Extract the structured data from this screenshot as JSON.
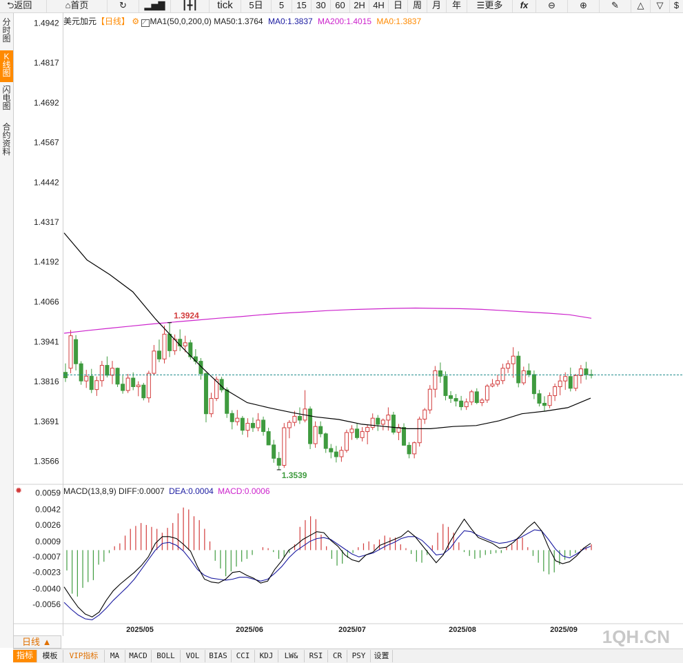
{
  "toolbar": {
    "back": "返回",
    "home": "首页",
    "tick": "tick",
    "p5d": "5日",
    "p5": "5",
    "p15": "15",
    "p30": "30",
    "p60": "60",
    "p2h": "2H",
    "p4h": "4H",
    "day": "日",
    "week": "周",
    "month": "月",
    "year": "年",
    "more": "更多",
    "fx": "fx"
  },
  "sidebar": {
    "tabs": [
      "分时图",
      "K线图",
      "闪电图",
      "合约资料"
    ],
    "active": 1
  },
  "legend": {
    "symbol": "美元加元",
    "period_tag": "【日线】",
    "ma_name": "MA1(50,0,200,0)",
    "ma50": "MA50:1.3764",
    "ma0_a": "MA0:1.3837",
    "ma200": "MA200:1.4015",
    "ma0_b": "MA0:1.3837"
  },
  "price_axis": [
    "1.4942",
    "1.4817",
    "1.4692",
    "1.4567",
    "1.4442",
    "1.4317",
    "1.4192",
    "1.4066",
    "1.3941",
    "1.3816",
    "1.3691",
    "1.3566"
  ],
  "annotations": {
    "high": "1.3924",
    "low": "1.3539"
  },
  "macd_legend": {
    "name": "MACD(13,8,9)",
    "diff": "DIFF:0.0007",
    "dea": "DEA:0.0004",
    "macd": "MACD:0.0006"
  },
  "macd_axis": [
    "0.0059",
    "0.0042",
    "0.0026",
    "0.0009",
    "-0.0007",
    "-0.0023",
    "-0.0040",
    "-0.0056"
  ],
  "x_labels": [
    "2025/05",
    "2025/06",
    "2025/07",
    "2025/08",
    "2025/09"
  ],
  "watermark": "1QH.CN",
  "period_selector": "日线 ▲",
  "bottom_tabs": [
    "指标",
    "模板",
    "VIP指标",
    "MA",
    "MACD",
    "BOLL",
    "VOL",
    "BIAS",
    "CCI",
    "KDJ",
    "LW&",
    "RSI",
    "CR",
    "PSY",
    "设置"
  ],
  "colors": {
    "up": "#d23b3b",
    "down": "#3f9b3f",
    "ma50": "#000000",
    "ma200": "#cc22cc",
    "ma0": "#ff8a00",
    "dea": "#1a1aa0",
    "last_price": "#1a8a8a"
  },
  "chart_data": {
    "type": "candlestick",
    "ylim": [
      1.3541,
      1.4967
    ],
    "last_price": 1.3837,
    "ma200": [
      1.3968,
      1.3976,
      1.3983,
      1.399,
      1.3997,
      1.4003,
      1.4009,
      1.4015,
      1.402,
      1.4026,
      1.4031,
      1.4035,
      1.4039,
      1.4042,
      1.4044,
      1.4046,
      1.4047,
      1.4046,
      1.4045,
      1.4043,
      1.4039,
      1.4035,
      1.4031,
      1.4026,
      1.4015
    ],
    "ma50": [
      1.4283,
      1.4198,
      1.4152,
      1.4098,
      1.4012,
      1.3935,
      1.3862,
      1.3793,
      1.375,
      1.3733,
      1.3718,
      1.3705,
      1.3697,
      1.3682,
      1.3675,
      1.3668,
      1.3668,
      1.3675,
      1.3678,
      1.3693,
      1.3715,
      1.3723,
      1.3734,
      1.3764
    ],
    "candles": [
      [
        1.3845,
        1.3873,
        1.3815,
        1.3828
      ],
      [
        1.3858,
        1.3978,
        1.3842,
        1.396
      ],
      [
        1.3948,
        1.3962,
        1.3851,
        1.3872
      ],
      [
        1.3872,
        1.388,
        1.3806,
        1.3818
      ],
      [
        1.3818,
        1.3853,
        1.3796,
        1.3833
      ],
      [
        1.3833,
        1.3856,
        1.378,
        1.3791
      ],
      [
        1.3791,
        1.3832,
        1.3771,
        1.3819
      ],
      [
        1.3819,
        1.3881,
        1.38,
        1.3867
      ],
      [
        1.3867,
        1.3895,
        1.3829,
        1.3836
      ],
      [
        1.3836,
        1.3881,
        1.3808,
        1.3858
      ],
      [
        1.3858,
        1.386,
        1.3799,
        1.3808
      ],
      [
        1.3808,
        1.3835,
        1.3778,
        1.3788
      ],
      [
        1.3788,
        1.384,
        1.378,
        1.3827
      ],
      [
        1.3827,
        1.3845,
        1.3789,
        1.38
      ],
      [
        1.38,
        1.3817,
        1.377,
        1.3805
      ],
      [
        1.3805,
        1.3812,
        1.3757,
        1.3765
      ],
      [
        1.3765,
        1.385,
        1.375,
        1.3842
      ],
      [
        1.3842,
        1.3931,
        1.3836,
        1.3912
      ],
      [
        1.3912,
        1.3948,
        1.3877,
        1.3887
      ],
      [
        1.3887,
        1.3992,
        1.3873,
        1.3965
      ],
      [
        1.3965,
        1.4001,
        1.3893,
        1.3913
      ],
      [
        1.3913,
        1.3964,
        1.39,
        1.3949
      ],
      [
        1.3949,
        1.398,
        1.3912,
        1.3928
      ],
      [
        1.3928,
        1.396,
        1.3908,
        1.3938
      ],
      [
        1.3938,
        1.3947,
        1.3885,
        1.3894
      ],
      [
        1.3894,
        1.3918,
        1.387,
        1.388
      ],
      [
        1.388,
        1.389,
        1.3822,
        1.3841
      ],
      [
        1.3841,
        1.3845,
        1.3688,
        1.3715
      ],
      [
        1.3715,
        1.3781,
        1.3704,
        1.3763
      ],
      [
        1.3763,
        1.3832,
        1.3755,
        1.3823
      ],
      [
        1.3823,
        1.3831,
        1.3782,
        1.379
      ],
      [
        1.379,
        1.3798,
        1.3702,
        1.3716
      ],
      [
        1.3716,
        1.3726,
        1.3666,
        1.369
      ],
      [
        1.369,
        1.3727,
        1.3678,
        1.3701
      ],
      [
        1.3701,
        1.3708,
        1.3649,
        1.3663
      ],
      [
        1.3663,
        1.3701,
        1.3641,
        1.3685
      ],
      [
        1.3685,
        1.3703,
        1.3658,
        1.3671
      ],
      [
        1.3671,
        1.3717,
        1.366,
        1.3695
      ],
      [
        1.3695,
        1.3706,
        1.3646,
        1.3659
      ],
      [
        1.3659,
        1.3671,
        1.3616,
        1.3617
      ],
      [
        1.3617,
        1.3633,
        1.3561,
        1.3575
      ],
      [
        1.3575,
        1.3595,
        1.3539,
        1.3553
      ],
      [
        1.3553,
        1.3686,
        1.3545,
        1.3671
      ],
      [
        1.3671,
        1.3695,
        1.3638,
        1.3688
      ],
      [
        1.3688,
        1.3724,
        1.3676,
        1.3707
      ],
      [
        1.3707,
        1.3735,
        1.3683,
        1.3695
      ],
      [
        1.3695,
        1.3789,
        1.3688,
        1.373
      ],
      [
        1.373,
        1.3738,
        1.3604,
        1.3621
      ],
      [
        1.3621,
        1.3691,
        1.3608,
        1.3675
      ],
      [
        1.3675,
        1.3691,
        1.3641,
        1.3652
      ],
      [
        1.3652,
        1.3656,
        1.3592,
        1.3606
      ],
      [
        1.3606,
        1.362,
        1.3575,
        1.3595
      ],
      [
        1.3595,
        1.3614,
        1.3562,
        1.358
      ],
      [
        1.358,
        1.3612,
        1.3564,
        1.36
      ],
      [
        1.36,
        1.3665,
        1.3593,
        1.3656
      ],
      [
        1.3656,
        1.3679,
        1.3633,
        1.3667
      ],
      [
        1.3667,
        1.3685,
        1.3634,
        1.364
      ],
      [
        1.364,
        1.3673,
        1.3628,
        1.3659
      ],
      [
        1.3659,
        1.368,
        1.3619,
        1.3672
      ],
      [
        1.3672,
        1.3716,
        1.3664,
        1.3701
      ],
      [
        1.3701,
        1.3711,
        1.3661,
        1.3682
      ],
      [
        1.3682,
        1.37,
        1.3663,
        1.3695
      ],
      [
        1.3695,
        1.3735,
        1.3662,
        1.3711
      ],
      [
        1.3711,
        1.3721,
        1.365,
        1.3657
      ],
      [
        1.3657,
        1.3683,
        1.3632,
        1.3672
      ],
      [
        1.3672,
        1.3685,
        1.3615,
        1.3616
      ],
      [
        1.3616,
        1.3626,
        1.3575,
        1.3589
      ],
      [
        1.3589,
        1.3628,
        1.3575,
        1.3624
      ],
      [
        1.3624,
        1.3706,
        1.3612,
        1.3698
      ],
      [
        1.3698,
        1.3733,
        1.3683,
        1.3727
      ],
      [
        1.3727,
        1.3805,
        1.3715,
        1.3792
      ],
      [
        1.3792,
        1.3865,
        1.3766,
        1.385
      ],
      [
        1.385,
        1.3876,
        1.3812,
        1.3833
      ],
      [
        1.3833,
        1.3848,
        1.3757,
        1.3772
      ],
      [
        1.3772,
        1.3786,
        1.3749,
        1.3763
      ],
      [
        1.3763,
        1.3777,
        1.3738,
        1.3755
      ],
      [
        1.3755,
        1.3771,
        1.3726,
        1.3737
      ],
      [
        1.3737,
        1.3763,
        1.3727,
        1.3752
      ],
      [
        1.3752,
        1.379,
        1.3742,
        1.3784
      ],
      [
        1.3784,
        1.3795,
        1.3745,
        1.375
      ],
      [
        1.375,
        1.3764,
        1.3739,
        1.3758
      ],
      [
        1.3758,
        1.3808,
        1.3749,
        1.3802
      ],
      [
        1.3802,
        1.3824,
        1.3798,
        1.3808
      ],
      [
        1.3808,
        1.3838,
        1.38,
        1.3819
      ],
      [
        1.3819,
        1.3872,
        1.3808,
        1.3858
      ],
      [
        1.3858,
        1.3883,
        1.3843,
        1.3872
      ],
      [
        1.3872,
        1.3924,
        1.3828,
        1.3896
      ],
      [
        1.3896,
        1.3911,
        1.3798,
        1.3812
      ],
      [
        1.3812,
        1.3863,
        1.3805,
        1.385
      ],
      [
        1.385,
        1.3873,
        1.383,
        1.3838
      ],
      [
        1.3838,
        1.3851,
        1.3761,
        1.3778
      ],
      [
        1.3778,
        1.379,
        1.3738,
        1.3748
      ],
      [
        1.3748,
        1.377,
        1.3722,
        1.3741
      ],
      [
        1.3741,
        1.3782,
        1.3732,
        1.3772
      ],
      [
        1.3772,
        1.381,
        1.3755,
        1.38
      ],
      [
        1.38,
        1.3838,
        1.3773,
        1.3818
      ],
      [
        1.3818,
        1.3845,
        1.379,
        1.3832
      ],
      [
        1.3832,
        1.386,
        1.3785,
        1.3795
      ],
      [
        1.3795,
        1.384,
        1.3786,
        1.3835
      ],
      [
        1.3835,
        1.3868,
        1.381,
        1.3856
      ],
      [
        1.3856,
        1.3878,
        1.3822,
        1.3838
      ],
      [
        1.3838,
        1.3854,
        1.3826,
        1.3837
      ]
    ],
    "macd_ylim": [
      -0.0076,
      0.0068
    ],
    "macd_hist": [
      -0.0021,
      -0.0045,
      -0.0048,
      -0.0039,
      -0.0033,
      -0.0031,
      -0.0015,
      -0.0012,
      -0.0003,
      0.0004,
      0.0007,
      0.0015,
      0.0022,
      0.0025,
      0.0028,
      0.0026,
      0.0024,
      0.0022,
      0.0018,
      0.0023,
      0.0028,
      0.0038,
      0.0044,
      0.0042,
      0.0035,
      0.0031,
      0.0022,
      0.0009,
      -0.0011,
      -0.0019,
      -0.0027,
      -0.0022,
      -0.0017,
      -0.0012,
      -0.0009,
      -0.0005,
      0.0,
      0.0003,
      0.0002,
      -0.0002,
      -0.0009,
      -0.0007,
      -0.0003,
      0.0006,
      0.0024,
      0.0031,
      0.0035,
      0.0032,
      0.0016,
      0.0004,
      -0.0009,
      -0.0016,
      -0.0014,
      -0.0008,
      -0.0003,
      0.0003,
      0.0007,
      0.0009,
      0.0006,
      0.0011,
      0.0015,
      0.0013,
      0.0013,
      0.0006,
      0.0002,
      -0.0004,
      -0.0012,
      -0.0013,
      -0.0005,
      0.0005,
      0.0018,
      0.0027,
      0.0024,
      0.0018,
      0.0008,
      -0.0002,
      -0.0006,
      -0.0009,
      -0.0008,
      -0.0005,
      -0.0004,
      -0.0003,
      -0.0003,
      0.0003,
      0.0006,
      0.0012,
      0.0013,
      0.0003,
      -0.0006,
      -0.0013,
      -0.0022,
      -0.0025,
      -0.0023,
      -0.0015,
      -0.001,
      -0.0006,
      -0.0003,
      0.0001,
      0.0003,
      0.0006
    ],
    "macd_diff": [
      -0.0038,
      -0.0049,
      -0.0059,
      -0.0066,
      -0.0069,
      -0.0064,
      -0.0052,
      -0.0042,
      -0.0035,
      -0.0029,
      -0.0023,
      -0.0016,
      -0.0007,
      0.0007,
      0.0014,
      0.0014,
      0.0012,
      0.0006,
      -0.0001,
      -0.0017,
      -0.003,
      -0.0033,
      -0.0034,
      -0.003,
      -0.0023,
      -0.0022,
      -0.0026,
      -0.0029,
      -0.0034,
      -0.0032,
      -0.002,
      -0.0011,
      0.0,
      0.0005,
      0.0011,
      0.0015,
      0.0019,
      0.0018,
      0.001,
      0.0004,
      -0.0005,
      -0.001,
      -0.0012,
      -0.0005,
      -0.0002,
      0.0005,
      0.0008,
      0.0011,
      0.0014,
      0.002,
      0.0014,
      0.0005,
      -0.0004,
      -0.0013,
      -0.0005,
      0.0009,
      0.0021,
      0.0032,
      0.0022,
      0.0013,
      0.001,
      0.0007,
      0.0002,
      0.0003,
      0.0008,
      0.0015,
      0.0023,
      0.0029,
      0.002,
      0.0003,
      -0.0011,
      -0.0014,
      -0.0012,
      -0.0006,
      0.0002,
      0.0007
    ],
    "macd_dea": [
      -0.0054,
      -0.0061,
      -0.0067,
      -0.0071,
      -0.0072,
      -0.0067,
      -0.006,
      -0.0052,
      -0.0045,
      -0.0038,
      -0.003,
      -0.002,
      -0.001,
      0.0,
      0.0007,
      0.0008,
      0.0005,
      -0.0001,
      -0.001,
      -0.002,
      -0.0026,
      -0.0029,
      -0.003,
      -0.0031,
      -0.003,
      -0.0028,
      -0.0028,
      -0.003,
      -0.0032,
      -0.003,
      -0.0024,
      -0.0017,
      -0.0008,
      -0.0001,
      0.0004,
      0.0009,
      0.0012,
      0.0013,
      0.0011,
      0.0006,
      0.0001,
      -0.0004,
      -0.0007,
      -0.0005,
      -0.0003,
      0.0001,
      0.0005,
      0.0008,
      0.0012,
      0.0014,
      0.0014,
      0.001,
      0.0003,
      -0.0005,
      -0.0004,
      0.0002,
      0.0012,
      0.002,
      0.0019,
      0.0015,
      0.0012,
      0.0009,
      0.0007,
      0.0008,
      0.001,
      0.0013,
      0.0017,
      0.0021,
      0.002,
      0.0011,
      0.0001,
      -0.0006,
      -0.0008,
      -0.0004,
      0.0001,
      0.0004
    ]
  }
}
